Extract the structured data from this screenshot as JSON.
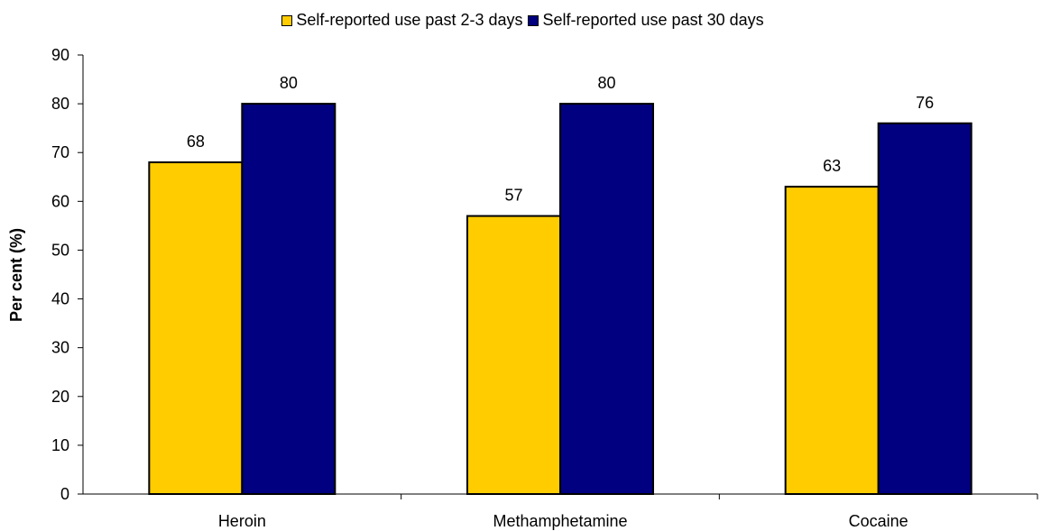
{
  "chart_data": {
    "type": "bar",
    "categories": [
      "Heroin",
      "Methamphetamine",
      "Cocaine"
    ],
    "series": [
      {
        "name": "Self-reported use past 2-3 days",
        "color": "#FFCC00",
        "values": [
          68,
          57,
          63
        ]
      },
      {
        "name": "Self-reported use past 30 days",
        "color": "#000080",
        "values": [
          80,
          80,
          76
        ]
      }
    ],
    "ylabel": "Per cent (%)",
    "ylim": [
      0,
      90
    ],
    "yticks": [
      0,
      10,
      20,
      30,
      40,
      50,
      60,
      70,
      80,
      90
    ],
    "legend": "top-center",
    "grid": false
  }
}
